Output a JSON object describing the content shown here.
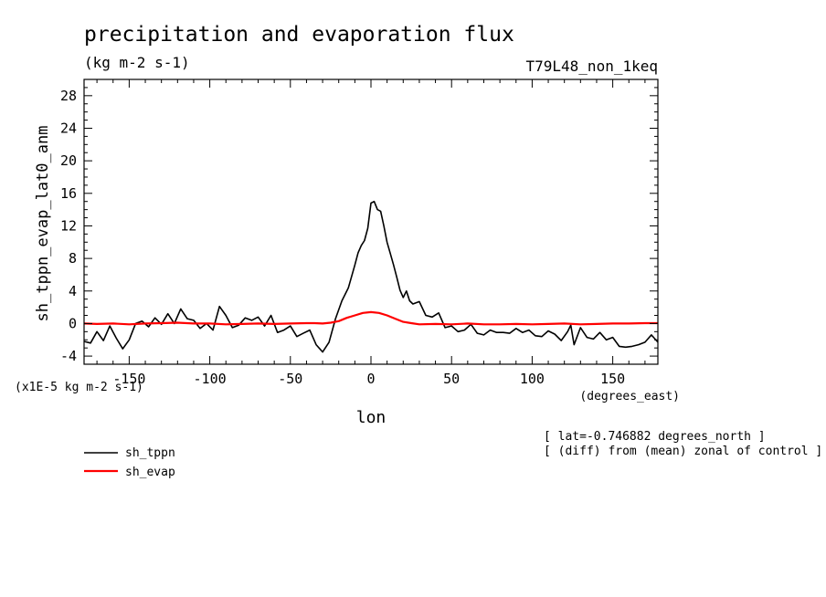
{
  "chart_data": {
    "type": "line",
    "title": "precipitation and evaporation flux",
    "subtitle": "(kg m-2 s-1)",
    "experiment": "T79L48_non_1keq",
    "ylabel": "sh_tppn_evap_lat0_anm",
    "xlabel": "lon",
    "x_units": "(degrees_east)",
    "y_scale_note": "(x1E-5 kg m-2 s-1)",
    "annotations": [
      "[ lat=-0.746882 degrees_north ]",
      "[ (diff) from (mean) zonal of control ]"
    ],
    "xlim": [
      -178,
      178
    ],
    "ylim": [
      -5,
      30
    ],
    "x_ticks": [
      -150,
      -100,
      -50,
      0,
      50,
      100,
      150
    ],
    "x_tick_labels": [
      "-150",
      "-100",
      "-50",
      "0",
      "50",
      "100",
      "150"
    ],
    "y_ticks": [
      -4,
      0,
      4,
      8,
      12,
      16,
      20,
      24,
      28
    ],
    "y_tick_labels": [
      "-4",
      "0",
      "4",
      "8",
      "12",
      "16",
      "20",
      "24",
      "28"
    ],
    "legend_position": "bottom-left",
    "series": [
      {
        "name": "sh_tppn",
        "color": "#000000",
        "x": [
          -178,
          -174,
          -170,
          -166,
          -162,
          -158,
          -154,
          -150,
          -146,
          -142,
          -138,
          -134,
          -130,
          -126,
          -122,
          -118,
          -114,
          -110,
          -106,
          -102,
          -98,
          -94,
          -90,
          -86,
          -82,
          -78,
          -74,
          -70,
          -66,
          -62,
          -58,
          -54,
          -50,
          -46,
          -42,
          -38,
          -34,
          -30,
          -26,
          -22,
          -18,
          -14,
          -10,
          -8,
          -6,
          -4,
          -2,
          0,
          2,
          4,
          6,
          8,
          10,
          12,
          14,
          16,
          18,
          20,
          22,
          24,
          26,
          30,
          34,
          38,
          42,
          46,
          50,
          54,
          58,
          62,
          66,
          70,
          74,
          78,
          82,
          86,
          90,
          94,
          98,
          102,
          106,
          110,
          114,
          118,
          122,
          124,
          126,
          130,
          134,
          138,
          142,
          146,
          150,
          154,
          158,
          162,
          166,
          170,
          174,
          178
        ],
        "values": [
          -2.2,
          -2.4,
          -1.0,
          -2.1,
          -0.3,
          -1.8,
          -3.1,
          -2.0,
          0.0,
          0.3,
          -0.4,
          0.7,
          -0.1,
          1.2,
          0.0,
          1.8,
          0.6,
          0.4,
          -0.6,
          0.0,
          -0.8,
          2.1,
          1.0,
          -0.5,
          -0.2,
          0.7,
          0.4,
          0.8,
          -0.3,
          1.0,
          -1.1,
          -0.8,
          -0.3,
          -1.6,
          -1.2,
          -0.8,
          -2.6,
          -3.5,
          -2.3,
          0.6,
          2.8,
          4.4,
          7.2,
          8.7,
          9.6,
          10.2,
          11.7,
          14.8,
          15.0,
          14.0,
          13.8,
          12.0,
          10.0,
          8.6,
          7.2,
          5.7,
          4.1,
          3.2,
          4.0,
          2.8,
          2.4,
          2.7,
          1.0,
          0.8,
          1.3,
          -0.5,
          -0.3,
          -1.0,
          -0.8,
          -0.1,
          -1.2,
          -1.4,
          -0.8,
          -1.1,
          -1.1,
          -1.2,
          -0.6,
          -1.1,
          -0.8,
          -1.5,
          -1.6,
          -0.9,
          -1.3,
          -2.1,
          -1.0,
          -0.2,
          -2.6,
          -0.5,
          -1.7,
          -1.9,
          -1.1,
          -2.0,
          -1.7,
          -2.8,
          -2.9,
          -2.8,
          -2.6,
          -2.3,
          -1.4,
          -2.3
        ],
        "line_width": 1.6
      },
      {
        "name": "sh_evap",
        "color": "#ff0000",
        "x": [
          -178,
          -170,
          -160,
          -150,
          -140,
          -130,
          -120,
          -110,
          -100,
          -90,
          -80,
          -70,
          -60,
          -50,
          -40,
          -35,
          -30,
          -25,
          -20,
          -15,
          -10,
          -5,
          0,
          5,
          10,
          15,
          20,
          25,
          30,
          40,
          50,
          60,
          70,
          80,
          90,
          100,
          110,
          120,
          130,
          140,
          150,
          160,
          170,
          178
        ],
        "values": [
          0.0,
          -0.05,
          0.0,
          -0.1,
          0.0,
          0.05,
          0.1,
          0.0,
          0.0,
          -0.1,
          -0.05,
          0.0,
          -0.05,
          0.0,
          0.05,
          0.05,
          0.0,
          0.1,
          0.3,
          0.7,
          1.0,
          1.3,
          1.4,
          1.3,
          1.0,
          0.6,
          0.2,
          0.05,
          -0.1,
          -0.05,
          -0.1,
          0.0,
          -0.1,
          -0.1,
          -0.05,
          -0.1,
          -0.05,
          0.0,
          -0.1,
          -0.05,
          0.0,
          0.0,
          0.05,
          0.05
        ],
        "line_width": 2.2
      }
    ]
  }
}
